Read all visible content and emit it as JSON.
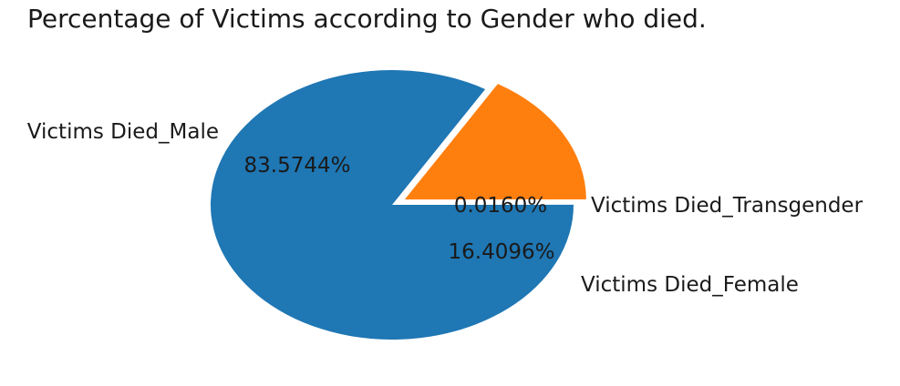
{
  "chart_data": {
    "type": "pie",
    "title": "Percentage of Victims according to Gender who died.",
    "slices": [
      {
        "label": "Victims Died_Transgender",
        "value": 0.016,
        "pct_text": "0.0160%",
        "color": "#1f77b4",
        "exploded": false
      },
      {
        "label": "Victims Died_Female",
        "value": 16.4096,
        "pct_text": "16.4096%",
        "color": "#ff7f0e",
        "exploded": true
      },
      {
        "label": "Victims Died_Male",
        "value": 83.5744,
        "pct_text": "83.5744%",
        "color": "#1f77b4",
        "exploded": false
      }
    ]
  }
}
